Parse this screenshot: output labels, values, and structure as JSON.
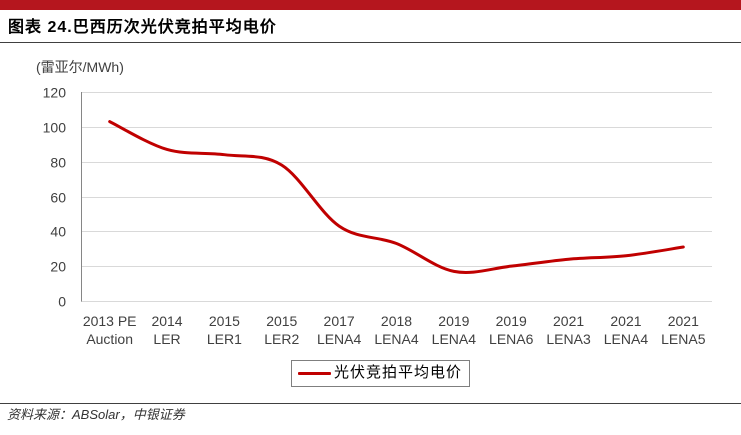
{
  "chart_data": {
    "type": "line",
    "title": "图表 24.巴西历次光伏竞拍平均电价",
    "ylabel": "(雷亚尔/MWh)",
    "categories": [
      "2013 PE\nAuction",
      "2014\nLER",
      "2015\nLER1",
      "2015\nLER2",
      "2017\nLENA4",
      "2018\nLENA4",
      "2019\nLENA4",
      "2019\nLENA6",
      "2021\nLENA3",
      "2021\nLENA4",
      "2021\nLENA5"
    ],
    "series": [
      {
        "name": "光伏竞拍平均电价",
        "values": [
          103,
          87,
          84,
          78,
          43,
          33,
          17,
          20,
          24,
          26,
          31
        ],
        "color": "#C00000"
      }
    ],
    "ylim": [
      0,
      120
    ],
    "yticks": [
      0,
      20,
      40,
      60,
      80,
      100,
      120
    ],
    "grid": true,
    "smooth": true,
    "legend": "bottom-center"
  },
  "footer": {
    "source": "资料来源：ABSolar，中银证券"
  },
  "colors": {
    "top_bar": "#B5161E",
    "grid": "#D9D9D9",
    "axis": "#868686"
  }
}
